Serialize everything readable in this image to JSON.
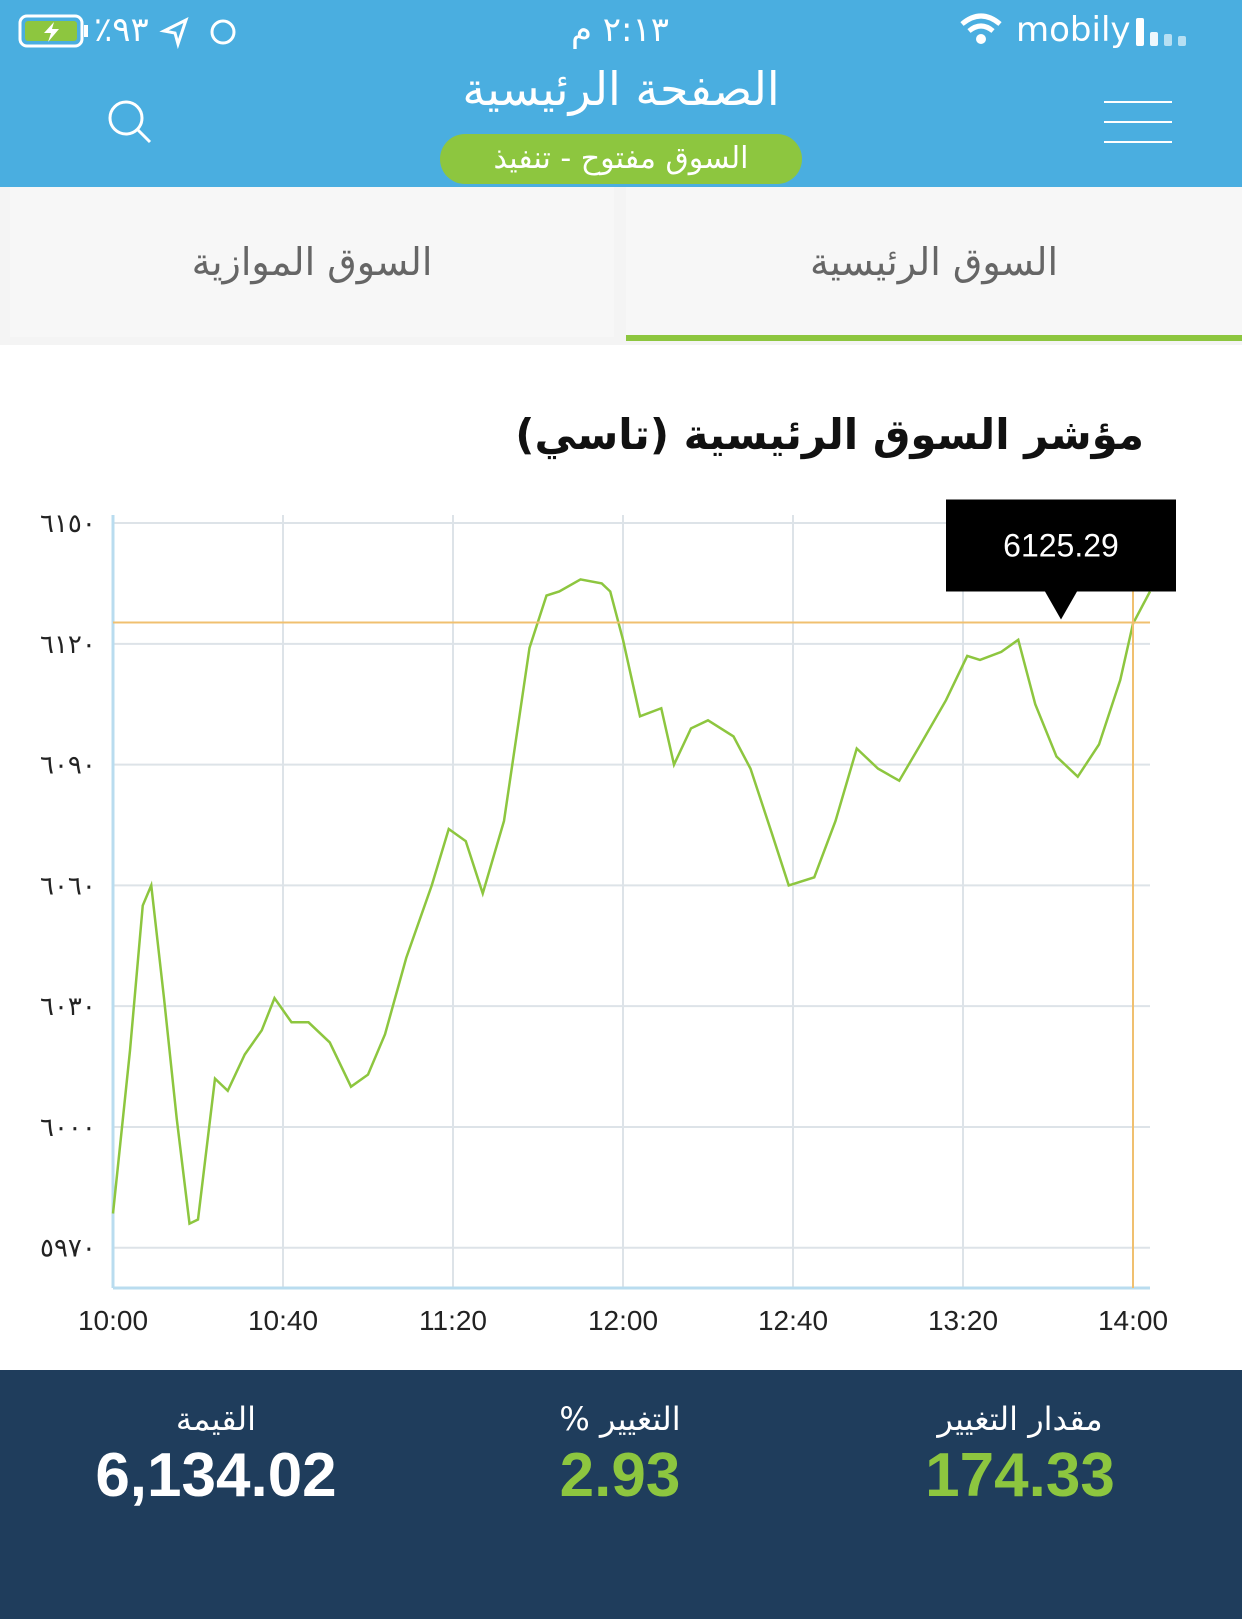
{
  "status_bar": {
    "battery": "٪٩٣",
    "time": "٢:١٣ م",
    "carrier": "mobily"
  },
  "header": {
    "title": "الصفحة الرئيسية",
    "badge": "السوق مفتوح - تنفيذ"
  },
  "tabs": [
    "السوق الرئيسية",
    "السوق الموازية"
  ],
  "chart_data": {
    "type": "line",
    "title": "مؤشر السوق الرئيسية (تاسي)",
    "color": "#8dc63f",
    "grid": true,
    "x": [
      "10:00",
      "10:04",
      "10:07",
      "10:09",
      "10:12",
      "10:15",
      "10:18",
      "10:20",
      "10:24",
      "10:27",
      "10:31",
      "10:35",
      "10:38",
      "10:42",
      "10:46",
      "10:51",
      "10:56",
      "11:00",
      "11:04",
      "11:09",
      "11:15",
      "11:19",
      "11:23",
      "11:27",
      "11:32",
      "11:38",
      "11:42",
      "11:45",
      "11:50",
      "11:55",
      "11:57",
      "12:00",
      "12:04",
      "12:09",
      "12:12",
      "12:16",
      "12:20",
      "12:26",
      "12:30",
      "12:35",
      "12:39",
      "12:45",
      "12:50",
      "12:55",
      "13:00",
      "13:05",
      "13:10",
      "13:16",
      "13:21",
      "13:24",
      "13:29",
      "13:33",
      "13:37",
      "13:42",
      "13:47",
      "13:52",
      "13:57",
      "14:00",
      "14:04"
    ],
    "values": [
      5978.5,
      6019,
      6055,
      6060,
      6032,
      6002,
      5976,
      5977,
      6012,
      6009,
      6018,
      6024,
      6032,
      6026,
      6026,
      6021,
      6010,
      6013,
      6023,
      6042,
      6060,
      6074,
      6071,
      6058,
      6076,
      6119,
      6132,
      6133,
      6136,
      6135,
      6133,
      6121,
      6102,
      6104,
      6090,
      6099,
      6101,
      6097,
      6089,
      6073,
      6060,
      6062,
      6076,
      6094,
      6089,
      6086,
      6095,
      6106,
      6117,
      6116,
      6118,
      6121,
      6105,
      6092,
      6087,
      6095,
      6111,
      6125,
      6133
    ],
    "xlim": [
      "10:00",
      "14:04"
    ],
    "xticks": [
      "10:00",
      "10:40",
      "11:20",
      "12:00",
      "12:40",
      "13:20",
      "14:00"
    ],
    "ylim": [
      5960,
      6152
    ],
    "yticks": [
      {
        "value": 5970,
        "label": "٥٩٧٠"
      },
      {
        "value": 6000,
        "label": "٦٠٠٠"
      },
      {
        "value": 6030,
        "label": "٦٠٣٠"
      },
      {
        "value": 6060,
        "label": "٦٠٦٠"
      },
      {
        "value": 6090,
        "label": "٦٠٩٠"
      },
      {
        "value": 6120,
        "label": "٦١٢٠"
      },
      {
        "value": 6150,
        "label": "٦١٥٠"
      }
    ],
    "tooltip": {
      "x": "14:00",
      "value": 6125.29,
      "color": "#f0c070"
    }
  },
  "stats": [
    {
      "label": "القيمة",
      "value": "6,134.02",
      "color": "#ffffff"
    },
    {
      "label": "% التغيير",
      "value": "2.93",
      "color": "#8dc63f"
    },
    {
      "label": "مقدار التغيير",
      "value": "174.33",
      "color": "#8dc63f"
    }
  ]
}
